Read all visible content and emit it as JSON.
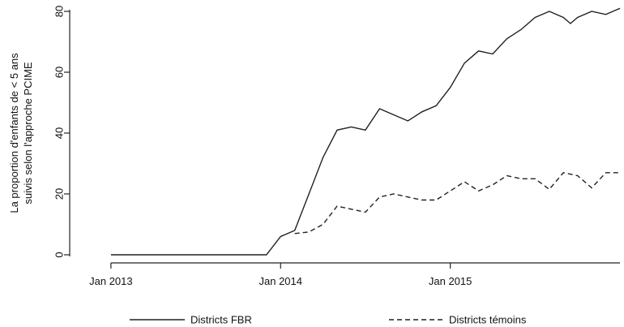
{
  "chart_data": {
    "type": "line",
    "title": "",
    "xlabel": "",
    "ylabel": [
      "La proportion d'enfants de < 5 ans",
      "suivis selon l'approche PCIME"
    ],
    "ylim": [
      0,
      80
    ],
    "yticks": [
      0,
      20,
      40,
      60,
      80
    ],
    "xlim": [
      2013.0,
      2016.0
    ],
    "xticks": [
      {
        "value": 2013.0,
        "label": "Jan 2013"
      },
      {
        "value": 2014.0,
        "label": "Jan 2014"
      },
      {
        "value": 2015.0,
        "label": "Jan 2015"
      }
    ],
    "legend_position": "bottom",
    "grid": false,
    "series": [
      {
        "name": "Districts FBR",
        "style": "solid",
        "color": "#222222",
        "x": [
          2013.0,
          2013.9167,
          2014.0,
          2014.0833,
          2014.1667,
          2014.25,
          2014.3333,
          2014.4167,
          2014.5,
          2014.5833,
          2014.6667,
          2014.75,
          2014.8333,
          2014.9167,
          2015.0,
          2015.0833,
          2015.1667,
          2015.25,
          2015.3333,
          2015.4167,
          2015.5,
          2015.5833,
          2015.6667,
          2015.7083,
          2015.75,
          2015.8333,
          2015.9167,
          2015.9583,
          2016.0
        ],
        "y": [
          0,
          0,
          6,
          8,
          20,
          32,
          41,
          42,
          41,
          48,
          46,
          44,
          47,
          49,
          55,
          63,
          67,
          66,
          71,
          74,
          78,
          80,
          78,
          76,
          78,
          80,
          79,
          80,
          81
        ]
      },
      {
        "name": "Districts témoins",
        "style": "dashed",
        "color": "#222222",
        "x": [
          2014.0833,
          2014.1667,
          2014.25,
          2014.3333,
          2014.4167,
          2014.5,
          2014.5833,
          2014.6667,
          2014.75,
          2014.8333,
          2014.9167,
          2015.0,
          2015.0833,
          2015.1667,
          2015.25,
          2015.3333,
          2015.4167,
          2015.5,
          2015.5833,
          2015.6667,
          2015.75,
          2015.8333,
          2015.9167,
          2016.0
        ],
        "y": [
          7,
          7.5,
          10,
          16,
          15,
          14,
          19,
          20,
          19,
          18,
          18,
          21,
          24,
          21,
          23,
          26,
          25,
          25,
          21.5,
          27,
          26,
          22,
          27,
          27
        ]
      }
    ]
  }
}
